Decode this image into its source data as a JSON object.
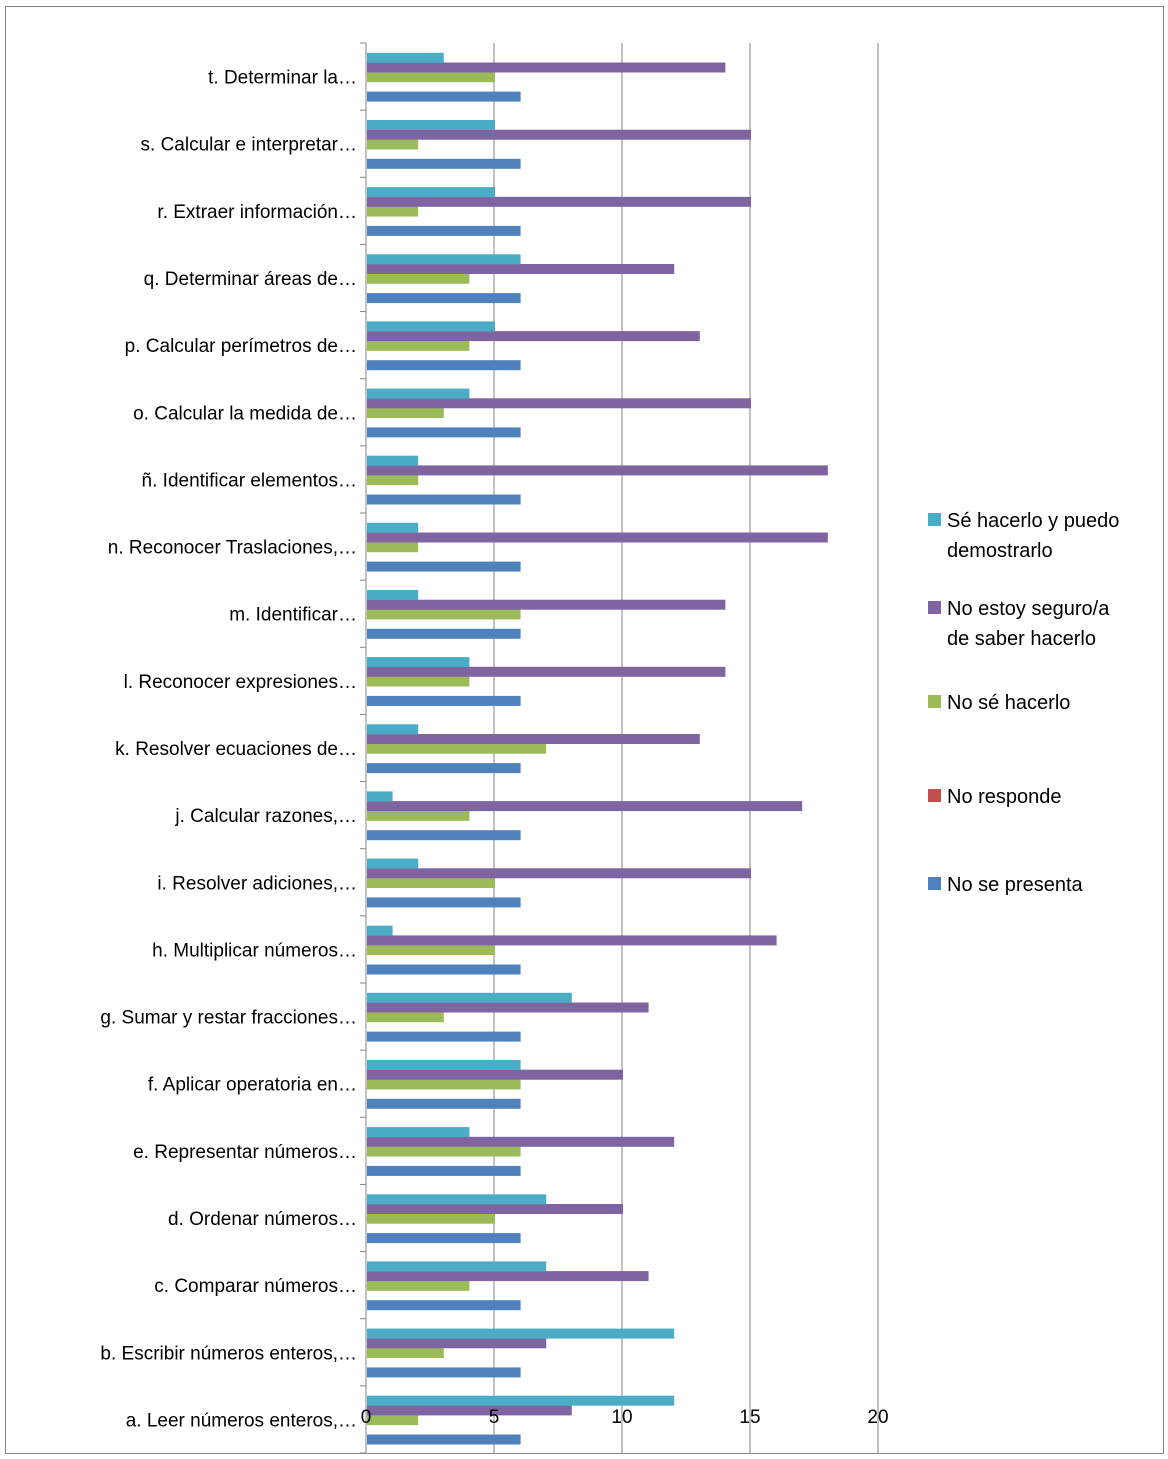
{
  "chart_data": {
    "type": "bar",
    "orientation": "horizontal",
    "categories": [
      "a. Leer números enteros,…",
      "b. Escribir números enteros,…",
      "c. Comparar números…",
      "d. Ordenar números…",
      "e. Representar números…",
      "f. Aplicar operatoria  en…",
      "g. Sumar y restar fracciones…",
      "h. Multiplicar números…",
      "i. Resolver adiciones,…",
      "j. Calcular razones,…",
      "k. Resolver ecuaciones de…",
      "l. Reconocer expresiones…",
      "m. Identificar…",
      "n. Reconocer Traslaciones,…",
      "ñ. Identificar elementos…",
      "o. Calcular la medida de…",
      "p. Calcular perímetros de…",
      "q. Determinar áreas de…",
      "r. Extraer información…",
      "s. Calcular e interpretar…",
      "t. Determinar la…"
    ],
    "series": [
      {
        "name": "No se presenta",
        "color": "#4F81BD",
        "values": [
          6,
          6,
          6,
          6,
          6,
          6,
          6,
          6,
          6,
          6,
          6,
          6,
          6,
          6,
          6,
          6,
          6,
          6,
          6,
          6,
          6
        ]
      },
      {
        "name": "No responde",
        "color": "#C0504D",
        "values": [
          0,
          0,
          0,
          0,
          0,
          0,
          0,
          0,
          0,
          0,
          0,
          0,
          0,
          0,
          0,
          0,
          0,
          0,
          0,
          0,
          0
        ]
      },
      {
        "name": "No sé hacerlo",
        "color": "#9BBB59",
        "values": [
          2,
          3,
          4,
          5,
          6,
          6,
          3,
          5,
          5,
          4,
          7,
          4,
          6,
          2,
          2,
          3,
          4,
          4,
          2,
          2,
          5
        ]
      },
      {
        "name": "No estoy seguro/a de saber hacerlo",
        "color": "#8064A2",
        "values": [
          8,
          7,
          11,
          10,
          12,
          10,
          11,
          16,
          15,
          17,
          13,
          14,
          14,
          18,
          18,
          15,
          13,
          12,
          15,
          15,
          14
        ]
      },
      {
        "name": "Sé hacerlo y puedo demostrarlo",
        "color": "#4BACC6",
        "values": [
          12,
          12,
          7,
          7,
          4,
          6,
          8,
          1,
          2,
          1,
          2,
          4,
          2,
          2,
          2,
          4,
          5,
          6,
          5,
          5,
          3
        ]
      }
    ],
    "x_ticks": [
      "0",
      "5",
      "10",
      "15",
      "20"
    ],
    "xlim": [
      0,
      20
    ],
    "grid": "vertical",
    "legend_position": "right",
    "title": "",
    "xlabel": "",
    "ylabel": ""
  }
}
